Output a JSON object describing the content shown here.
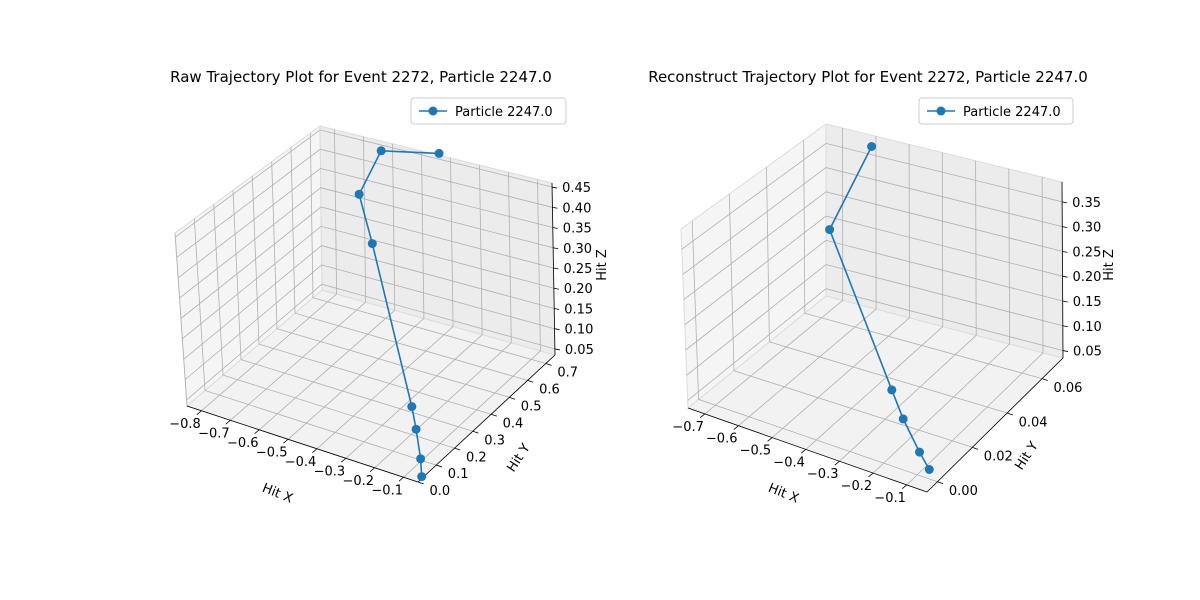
{
  "chart_data": [
    {
      "type": "line3d",
      "title": "Raw Trajectory Plot for Event 2272, Particle 2247.0",
      "xlabel": "Hit X",
      "ylabel": "Hit Y",
      "zlabel": "Hit Z",
      "x_ticks": [
        "−0.8",
        "−0.7",
        "−0.6",
        "−0.5",
        "−0.4",
        "−0.3",
        "−0.2",
        "−0.1"
      ],
      "y_ticks": [
        "0.0",
        "0.1",
        "0.2",
        "0.3",
        "0.4",
        "0.5",
        "0.6",
        "0.7"
      ],
      "z_ticks": [
        "0.05",
        "0.10",
        "0.15",
        "0.20",
        "0.25",
        "0.30",
        "0.35",
        "0.40",
        "0.45"
      ],
      "legend": "top-right",
      "grid": true,
      "series": [
        {
          "name": "Particle 2247.0",
          "color": "#1f77b4",
          "points": [
            {
              "x": -0.05,
              "y": 0.02,
              "z": 0.04
            },
            {
              "x": -0.08,
              "y": 0.06,
              "z": 0.06
            },
            {
              "x": -0.14,
              "y": 0.13,
              "z": 0.09
            },
            {
              "x": -0.18,
              "y": 0.17,
              "z": 0.12
            },
            {
              "x": -0.54,
              "y": 0.54,
              "z": 0.3
            },
            {
              "x": -0.64,
              "y": 0.63,
              "z": 0.37
            },
            {
              "x": -0.62,
              "y": 0.72,
              "z": 0.45
            },
            {
              "x": -0.42,
              "y": 0.72,
              "z": 0.48
            }
          ]
        }
      ]
    },
    {
      "type": "line3d",
      "title": "Reconstruct Trajectory Plot for Event 2272, Particle 2247.0",
      "xlabel": "Hit X",
      "ylabel": "Hit Y",
      "zlabel": "Hit Z",
      "x_ticks": [
        "−0.7",
        "−0.6",
        "−0.5",
        "−0.4",
        "−0.3",
        "−0.2",
        "−0.1"
      ],
      "y_ticks": [
        "0.00",
        "0.02",
        "0.04",
        "0.06"
      ],
      "z_ticks": [
        "0.05",
        "0.10",
        "0.15",
        "0.20",
        "0.25",
        "0.30",
        "0.35"
      ],
      "legend": "top-right",
      "grid": true,
      "series": [
        {
          "name": "Particle 2247.0",
          "color": "#1f77b4",
          "points": [
            {
              "x": -0.08,
              "y": 0.003,
              "z": 0.04
            },
            {
              "x": -0.13,
              "y": 0.007,
              "z": 0.05
            },
            {
              "x": -0.22,
              "y": 0.015,
              "z": 0.07
            },
            {
              "x": -0.29,
              "y": 0.022,
              "z": 0.09
            },
            {
              "x": -0.62,
              "y": 0.05,
              "z": 0.26
            },
            {
              "x": -0.58,
              "y": 0.066,
              "z": 0.39
            }
          ]
        }
      ]
    }
  ]
}
